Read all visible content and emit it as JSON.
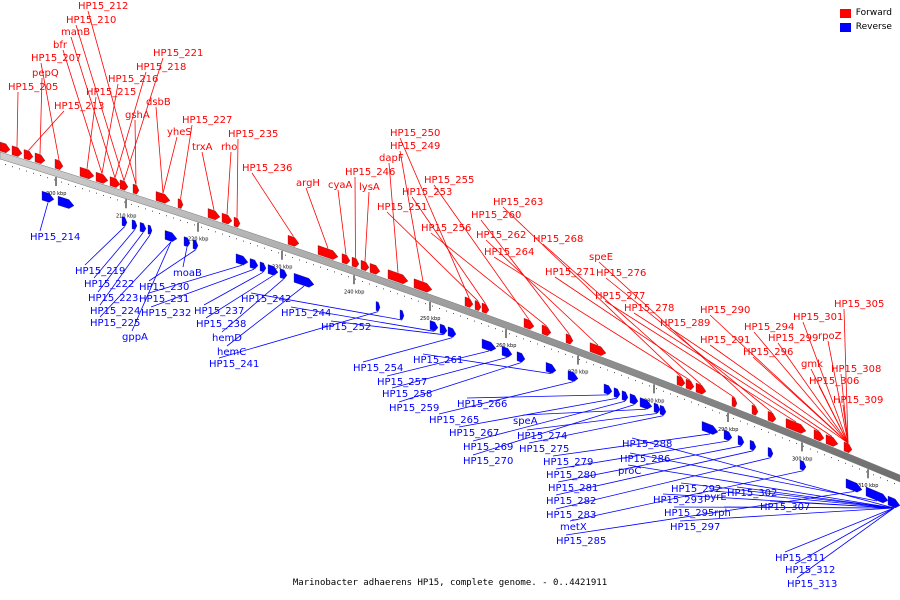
{
  "caption": "Marinobacter adhaerens HP15, complete genome. - 0..4421911",
  "legend": [
    {
      "label": "Forward",
      "color": "#ff0000"
    },
    {
      "label": "Reverse",
      "color": "#0000ff"
    }
  ],
  "colors": {
    "forward": "#ff0000",
    "reverse": "#0000ff",
    "backbone": "#9a9a9a"
  },
  "kbp_labels": [
    "200 kbp",
    "210 kbp",
    "220 kbp",
    "230 kbp",
    "240 kbp",
    "250 kbp",
    "260 kbp",
    "270 kbp",
    "280 kbp",
    "290 kbp",
    "300 kbp",
    "310 kbp"
  ],
  "forward_labels": [
    "HP15_212",
    "HP15_210",
    "manB",
    "bfr",
    "HP15_207",
    "pepQ",
    "HP15_205",
    "HP15_213",
    "HP15_215",
    "HP15_216",
    "HP15_218",
    "HP15_221",
    "gshA",
    "dsbB",
    "yheS",
    "HP15_227",
    "trxA",
    "rho",
    "HP15_235",
    "HP15_236",
    "argH",
    "cyaA",
    "HP15_246",
    "lysA",
    "dapF",
    "HP15_249",
    "HP15_250",
    "HP15_251",
    "HP15_253",
    "HP15_255",
    "HP15_256",
    "HP15_260",
    "HP15_262",
    "HP15_263",
    "HP15_264",
    "HP15_268",
    "HP15_271",
    "speE",
    "HP15_276",
    "HP15_277",
    "HP15_278",
    "HP15_289",
    "HP15_290",
    "HP15_291",
    "HP15_294",
    "HP15_296",
    "HP15_299",
    "HP15_301",
    "gmk",
    "rpoZ",
    "HP15_305",
    "HP15_306",
    "HP15_308",
    "HP15_309"
  ],
  "reverse_labels": [
    "HP15_214",
    "HP15_219",
    "HP15_222",
    "HP15_223",
    "HP15_224",
    "HP15_225",
    "gppA",
    "moaB",
    "HP15_230",
    "HP15_231",
    "HP15_232",
    "HP15_237",
    "HP15_238",
    "hemD",
    "hemC",
    "HP15_241",
    "HP15_242",
    "HP15_244",
    "HP15_252",
    "HP15_254",
    "HP15_257",
    "HP15_258",
    "HP15_259",
    "HP15_261",
    "HP15_265",
    "HP15_266",
    "HP15_267",
    "HP15_269",
    "HP15_270",
    "speA",
    "HP15_274",
    "HP15_275",
    "HP15_279",
    "HP15_280",
    "HP15_281",
    "HP15_282",
    "HP15_283",
    "metX",
    "HP15_285",
    "HP15_286",
    "HP15_288",
    "proC",
    "HP15_292",
    "HP15_293",
    "HP15_295",
    "HP15_297",
    "pyrE",
    "rph",
    "HP15_302",
    "HP15_307",
    "HP15_311",
    "HP15_312",
    "HP15_313"
  ]
}
